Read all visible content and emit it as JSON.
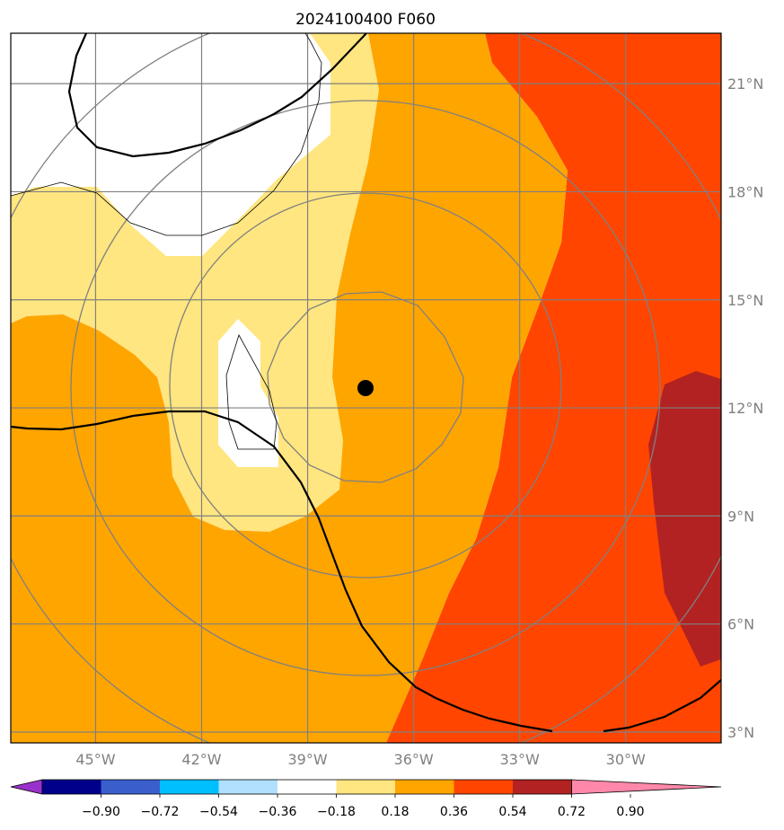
{
  "title": "2024100400 F060",
  "lon_ticks": [
    {
      "value": -45,
      "label": "45°W"
    },
    {
      "value": -42,
      "label": "42°W"
    },
    {
      "value": -39,
      "label": "39°W"
    },
    {
      "value": -36,
      "label": "36°W"
    },
    {
      "value": -33,
      "label": "33°W"
    },
    {
      "value": -30,
      "label": "30°W"
    }
  ],
  "lat_ticks": [
    {
      "value": 3,
      "label": "3°N"
    },
    {
      "value": 6,
      "label": "6°N"
    },
    {
      "value": 9,
      "label": "9°N"
    },
    {
      "value": 12,
      "label": "12°N"
    },
    {
      "value": 15,
      "label": "15°N"
    },
    {
      "value": 18,
      "label": "18°N"
    },
    {
      "value": 21,
      "label": "21°N"
    }
  ],
  "extent": {
    "lon": [
      -47.4,
      -27.3
    ],
    "lat": [
      2.7,
      22.4
    ]
  },
  "center": {
    "lon": -37.4,
    "lat": 12.7
  },
  "colorbar": {
    "levels": [
      -0.9,
      -0.72,
      -0.54,
      -0.36,
      -0.18,
      0.18,
      0.36,
      0.54,
      0.72,
      0.9
    ],
    "labels": [
      "−0.90",
      "−0.72",
      "−0.54",
      "−0.36",
      "−0.18",
      "0.18",
      "0.36",
      "0.54",
      "0.72",
      "0.90"
    ],
    "colors": [
      "#9932cc",
      "#00008b",
      "#3a5fcd",
      "#00bfff",
      "#b0e0fe",
      "#ffffff",
      "#ffe680",
      "#ffa500",
      "#ff4500",
      "#b22222",
      "#ff88aa"
    ]
  },
  "colors": {
    "frame": "#000000",
    "grid": "#808080",
    "contour_thick": "#000000",
    "rings": "#808080"
  }
}
